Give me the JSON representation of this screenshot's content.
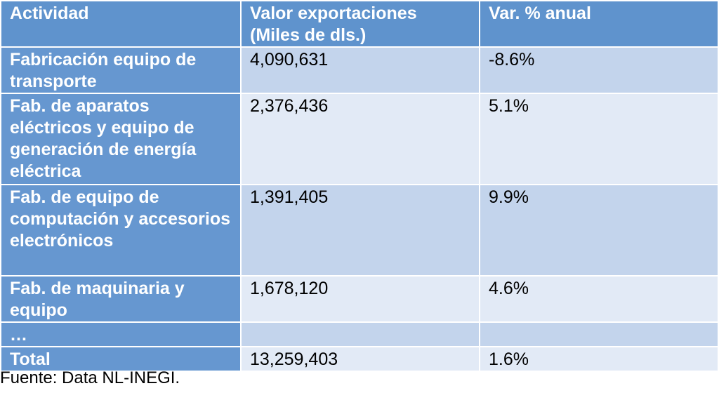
{
  "table": {
    "headers": [
      "Actividad",
      "Valor exportaciones (Miles de dls.)",
      "Var. % anual"
    ],
    "rows": [
      {
        "actividad": "Fabricación equipo de transporte",
        "valor": "4,090,631",
        "variacion": "-8.6%"
      },
      {
        "actividad": "Fab. de aparatos eléctricos y equipo de generación de energía eléctrica",
        "valor": "2,376,436",
        "variacion": "5.1%"
      },
      {
        "actividad": "Fab. de equipo de computación y accesorios electrónicos",
        "valor": "1,391,405",
        "variacion": "9.9%"
      },
      {
        "actividad": "Fab. de maquinaria y equipo",
        "valor": "1,678,120",
        "variacion": "4.6%"
      },
      {
        "actividad": "…",
        "valor": "",
        "variacion": ""
      },
      {
        "actividad": "Total",
        "valor": "13,259,403",
        "variacion": "1.6%"
      }
    ]
  },
  "colors": {
    "header_bg": "#5f93cd",
    "first_col_bg": "#6697d0",
    "row_light": "#e2eaf6",
    "row_dark": "#c3d4ec"
  },
  "source": "Fuente: Data NL-INEGI."
}
